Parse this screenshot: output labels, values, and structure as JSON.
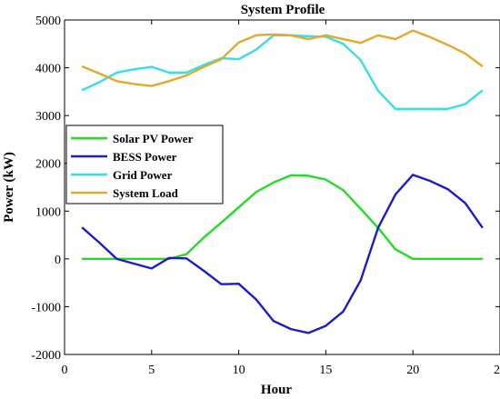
{
  "chart_data": {
    "type": "line",
    "title": "System Profile",
    "xlabel": "Hour",
    "ylabel": "Power (kW)",
    "xlim": [
      0,
      25
    ],
    "ylim": [
      -2000,
      5000
    ],
    "xticks": [
      0,
      5,
      10,
      15,
      20,
      25
    ],
    "yticks": [
      -2000,
      -1000,
      0,
      1000,
      2000,
      3000,
      4000,
      5000
    ],
    "grid": false,
    "legend_position": "middle-left",
    "x": [
      1,
      2,
      3,
      4,
      5,
      6,
      7,
      8,
      9,
      10,
      11,
      12,
      13,
      14,
      15,
      16,
      17,
      18,
      19,
      20,
      21,
      22,
      23,
      24
    ],
    "series": [
      {
        "name": "Solar PV Power",
        "color": "#22dd22",
        "values": [
          0,
          0,
          0,
          0,
          0,
          0,
          100,
          450,
          760,
          1080,
          1400,
          1600,
          1750,
          1740,
          1660,
          1440,
          1050,
          650,
          200,
          0,
          0,
          0,
          0,
          0
        ]
      },
      {
        "name": "BESS Power",
        "color": "#1c1cc8",
        "values": [
          660,
          340,
          0,
          -100,
          -200,
          20,
          10,
          -250,
          -530,
          -520,
          -850,
          -1300,
          -1470,
          -1550,
          -1400,
          -1100,
          -450,
          650,
          1350,
          1760,
          1630,
          1460,
          1170,
          650
        ]
      },
      {
        "name": "Grid Power",
        "color": "#33e0e8",
        "values": [
          3530,
          3700,
          3900,
          3970,
          4020,
          3900,
          3900,
          4060,
          4200,
          4180,
          4380,
          4680,
          4680,
          4660,
          4650,
          4500,
          4160,
          3520,
          3140,
          3140,
          3140,
          3140,
          3240,
          3530
        ]
      },
      {
        "name": "System Load",
        "color": "#e2a92a",
        "values": [
          4030,
          3880,
          3720,
          3660,
          3620,
          3720,
          3840,
          4020,
          4180,
          4530,
          4680,
          4700,
          4680,
          4600,
          4680,
          4600,
          4520,
          4680,
          4600,
          4780,
          4640,
          4480,
          4300,
          4030
        ]
      }
    ]
  }
}
